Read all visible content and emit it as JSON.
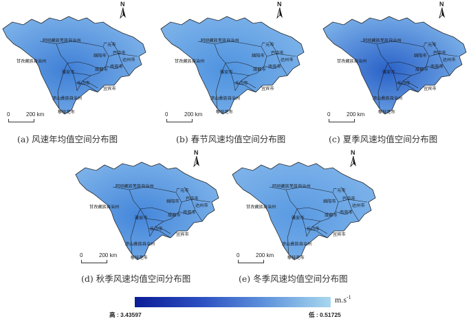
{
  "panels": [
    {
      "id": "a",
      "caption": "(a) 风速年均值空间分布图",
      "fill": "#3f7fd6"
    },
    {
      "id": "b",
      "caption": "(b) 春节风速均值空间分布图",
      "fill": "#4f93df"
    },
    {
      "id": "c",
      "caption": "(c) 夏季风速均值空间分布图",
      "fill": "#2a62c8"
    },
    {
      "id": "d",
      "caption": "(d) 秋季风速均值空间分布图",
      "fill": "#4486da"
    },
    {
      "id": "e",
      "caption": "(e) 冬季风速均值空间分布图",
      "fill": "#5a9ae2"
    }
  ],
  "map_labels": {
    "aba": "阿坝藏族羌族自治州",
    "ganzi": "甘孜藏族自治州",
    "guangyuan": "广元市",
    "bazhong": "巴中市",
    "dazhou": "达州市",
    "mianyang": "绵阳市",
    "nanchong": "南充市",
    "chengdu": "成都市",
    "yaan": "雅安市",
    "leshan": "乐山市",
    "yibin": "宜宾市",
    "liangshan": "凉山彝族自治州",
    "panzhihua": "攀枝花市"
  },
  "north_label": "N",
  "scale": {
    "start": "0",
    "end": "200 km"
  },
  "legend": {
    "unit": "m.s",
    "unit_exp": "-1",
    "high": "高 : 3.43597",
    "low": "低 : 0.51725",
    "color_high": "#0b1c97",
    "color_low": "#a8d8ee"
  }
}
